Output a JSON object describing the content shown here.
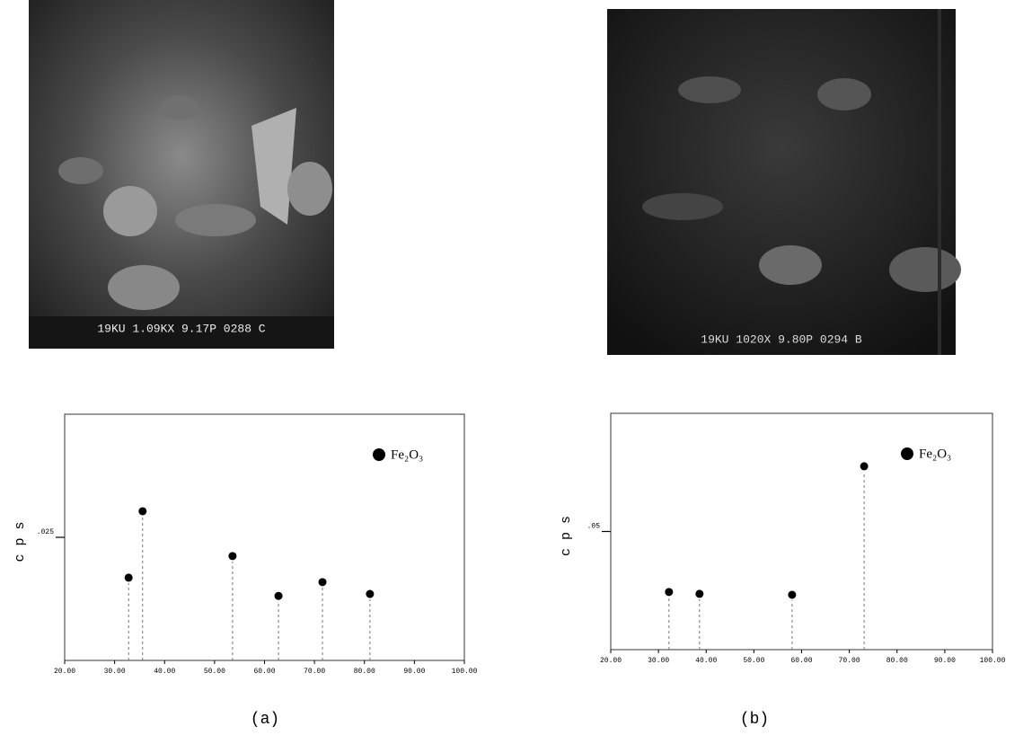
{
  "images": [
    {
      "caption": "19KU  1.09KX  9.17P  0288  C"
    },
    {
      "caption": "19KU  1020X   9.80P  0294  B"
    }
  ],
  "panel_labels": [
    "(a)",
    "(b)"
  ],
  "chart_data": [
    {
      "type": "scatter",
      "y_label": "c p s",
      "xlim": [
        20,
        100
      ],
      "xticks": [
        {
          "value": 20,
          "label": "20.00"
        },
        {
          "value": 30,
          "label": "30.00"
        },
        {
          "value": 40,
          "label": "40.00"
        },
        {
          "value": 50,
          "label": "50.00"
        },
        {
          "value": 60,
          "label": "60.00"
        },
        {
          "value": 70,
          "label": "70.00"
        },
        {
          "value": 80,
          "label": "80.00"
        },
        {
          "value": 90,
          "label": "90.00"
        },
        {
          "value": 100,
          "label": "100.00"
        }
      ],
      "ylim": [
        0,
        0.05
      ],
      "yticks": [
        {
          "value": 0.025,
          "label": ".025"
        }
      ],
      "series": [
        {
          "name": "Fe₂O₃",
          "color": "#000000",
          "x": [
            32.8,
            35.6,
            53.6,
            62.8,
            71.6,
            81.1
          ],
          "values": [
            0.0168,
            0.0303,
            0.0212,
            0.0131,
            0.0159,
            0.0135
          ]
        }
      ]
    },
    {
      "type": "scatter",
      "y_label": "c p s",
      "xlim": [
        20,
        100
      ],
      "xticks": [
        {
          "value": 20,
          "label": "20.00"
        },
        {
          "value": 30,
          "label": "30.00"
        },
        {
          "value": 40,
          "label": "40.00"
        },
        {
          "value": 50,
          "label": "50.00"
        },
        {
          "value": 60,
          "label": "60.00"
        },
        {
          "value": 70,
          "label": "70.00"
        },
        {
          "value": 80,
          "label": "80.00"
        },
        {
          "value": 90,
          "label": "90.00"
        },
        {
          "value": 100,
          "label": "100.00"
        }
      ],
      "ylim": [
        0,
        0.1
      ],
      "yticks": [
        {
          "value": 0.05,
          "label": ".05"
        }
      ],
      "series": [
        {
          "name": "Fe₂O₃",
          "color": "#000000",
          "x": [
            32.2,
            38.6,
            58.0,
            73.1
          ],
          "values": [
            0.0244,
            0.0236,
            0.0232,
            0.0776
          ]
        }
      ]
    }
  ]
}
